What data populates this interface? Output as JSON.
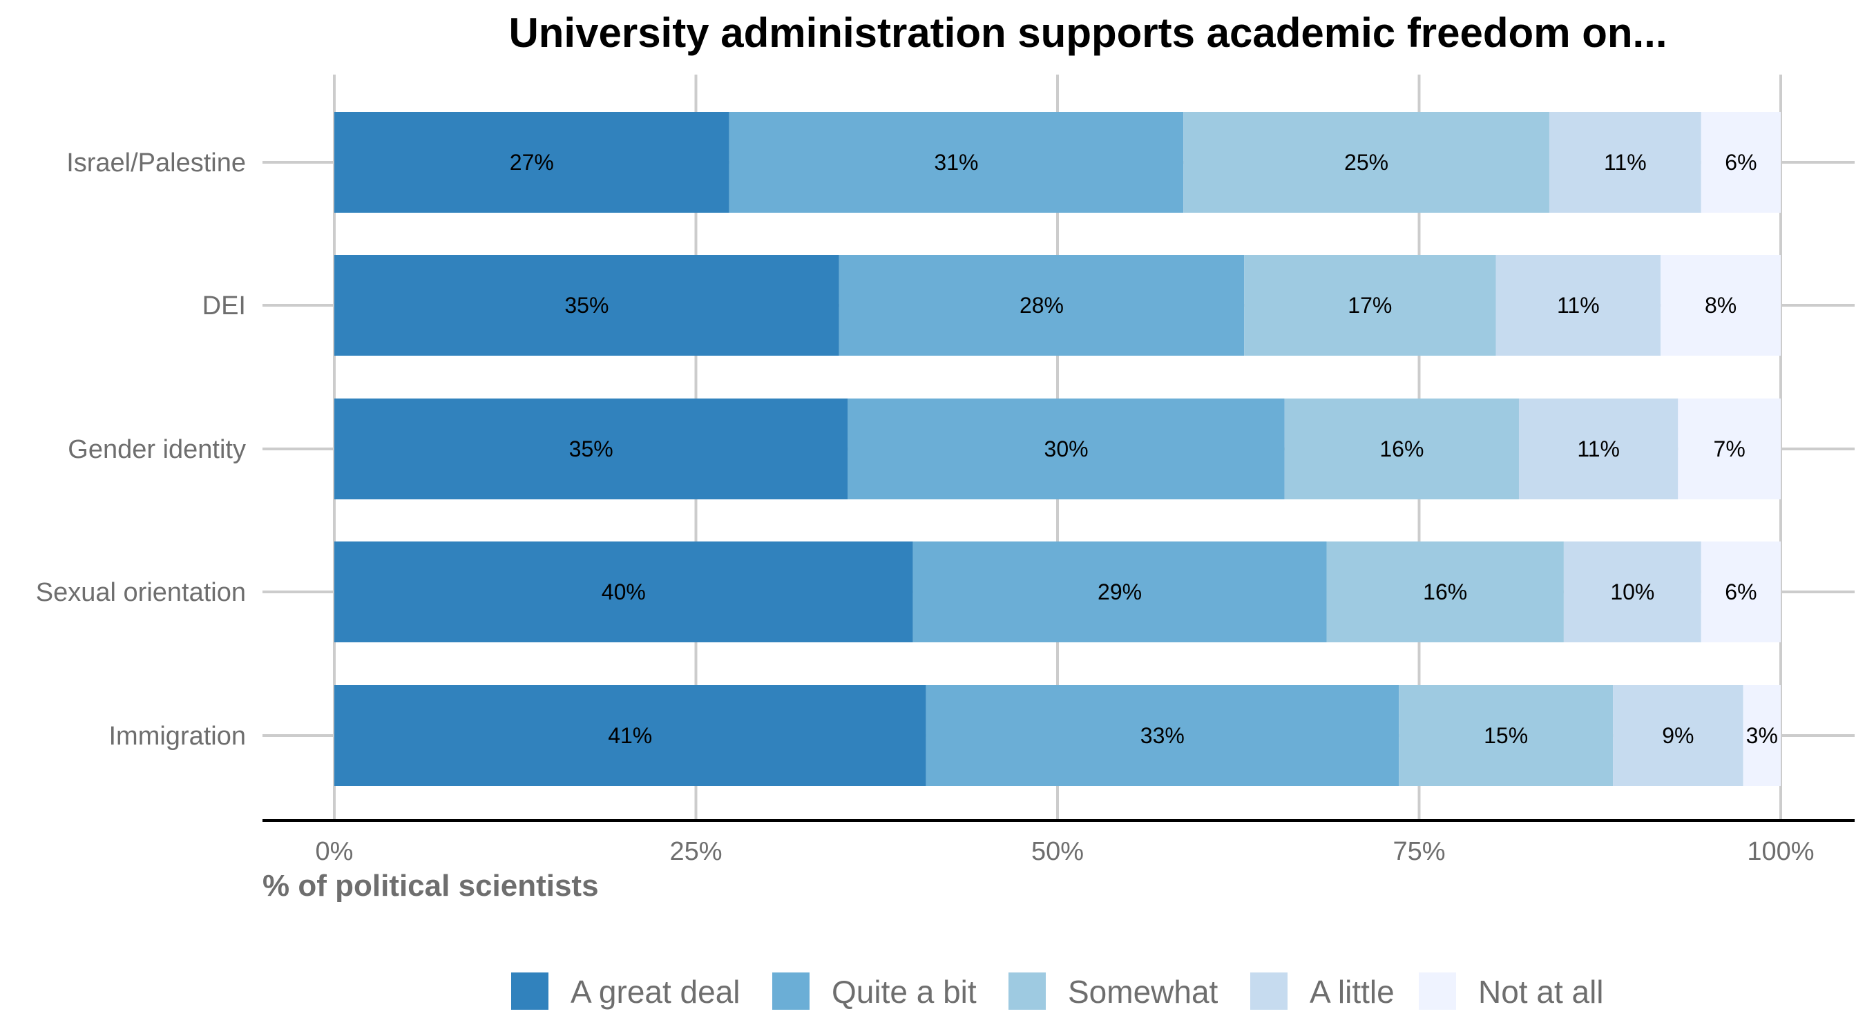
{
  "chart_data": {
    "type": "bar",
    "orientation": "horizontal",
    "stacked": true,
    "title": "University administration supports academic freedom on...",
    "xlabel": "% of political scientists",
    "ylabel": "",
    "xlim": [
      0,
      100
    ],
    "x_ticks": [
      "0%",
      "25%",
      "50%",
      "75%",
      "100%"
    ],
    "grid": true,
    "legend_position": "bottom",
    "categories": [
      "Israel/Palestine",
      "DEI",
      "Gender identity",
      "Sexual orientation",
      "Immigration"
    ],
    "series": [
      {
        "name": "A great deal",
        "color": "#3182bd",
        "values": [
          27.3,
          34.9,
          35.5,
          40.0,
          40.9
        ],
        "labels": [
          "27%",
          "35%",
          "35%",
          "40%",
          "41%"
        ]
      },
      {
        "name": "Quite a bit",
        "color": "#6baed6",
        "values": [
          31.4,
          28.0,
          30.2,
          28.6,
          32.7
        ],
        "labels": [
          "31%",
          "28%",
          "30%",
          "29%",
          "33%"
        ]
      },
      {
        "name": "Somewhat",
        "color": "#9ecae1",
        "values": [
          25.3,
          17.4,
          16.2,
          16.4,
          14.8
        ],
        "labels": [
          "25%",
          "17%",
          "16%",
          "16%",
          "15%"
        ]
      },
      {
        "name": "A little",
        "color": "#c6dbef",
        "values": [
          10.5,
          11.4,
          11.0,
          9.5,
          9.0
        ],
        "labels": [
          "11%",
          "11%",
          "11%",
          "10%",
          "9%"
        ]
      },
      {
        "name": "Not at all",
        "color": "#eff3ff",
        "values": [
          5.5,
          8.3,
          7.1,
          5.5,
          2.6
        ],
        "labels": [
          "6%",
          "8%",
          "7%",
          "6%",
          "3%"
        ]
      }
    ]
  }
}
